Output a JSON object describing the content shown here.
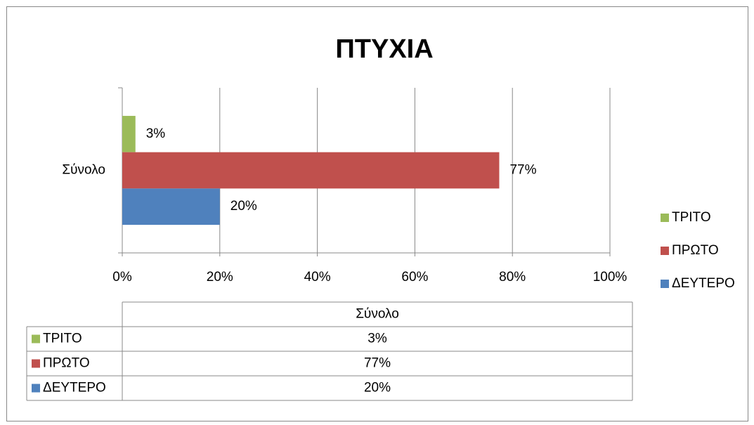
{
  "chart_data": {
    "type": "hbar",
    "title": "ΠΤΥΧΙΑ",
    "categories": [
      "Σύνολο"
    ],
    "series": [
      {
        "name": "ΤΡΙΤΟ",
        "color": "#9bbb59",
        "values": [
          2.7
        ],
        "value_labels": [
          "3%"
        ]
      },
      {
        "name": "ΠΡΩΤΟ",
        "color": "#c0504d",
        "values": [
          77.3
        ],
        "value_labels": [
          "77%"
        ]
      },
      {
        "name": "ΔΕΥΤΕΡΟ",
        "color": "#4f81bd",
        "values": [
          20
        ],
        "value_labels": [
          "20%"
        ]
      }
    ],
    "xlim": [
      0,
      100
    ],
    "xticks": [
      {
        "value": 0,
        "label": "0%"
      },
      {
        "value": 20,
        "label": "20%"
      },
      {
        "value": 40,
        "label": "40%"
      },
      {
        "value": 60,
        "label": "60%"
      },
      {
        "value": 80,
        "label": "80%"
      },
      {
        "value": 100,
        "label": "100%"
      }
    ],
    "grid": true,
    "legend": "right",
    "data_table": true
  }
}
